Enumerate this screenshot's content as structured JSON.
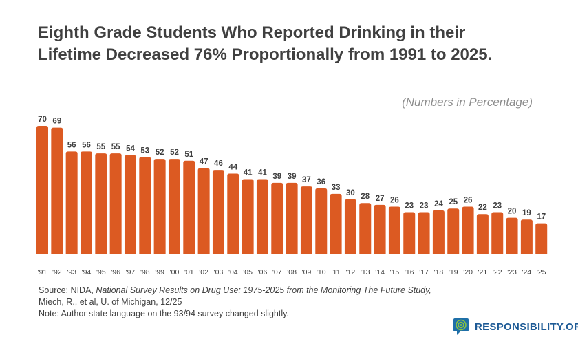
{
  "title_lines": [
    "Eighth Grade Students Who Reported Drinking in their",
    "Lifetime Decreased 76% Proportionally from 1991 to 2025."
  ],
  "subtitle": "(Numbers in Percentage)",
  "chart_data": {
    "type": "bar",
    "title": "Eighth Grade Students Who Reported Drinking in their Lifetime Decreased 76% Proportionally from 1991 to 2025.",
    "ylabel": "(Numbers in Percentage)",
    "categories": [
      "'91",
      "'92",
      "'93",
      "'94",
      "'95",
      "'96",
      "'97",
      "'98",
      "'99",
      "'00",
      "'01",
      "'02",
      "'03",
      "'04",
      "'05",
      "'06",
      "'07",
      "'08",
      "'09",
      "'10",
      "'11",
      "'12",
      "'13",
      "'14",
      "'15",
      "'16",
      "'17",
      "'18",
      "'19",
      "'20",
      "'21",
      "'22",
      "'23",
      "'24",
      "'25"
    ],
    "values": [
      70,
      69,
      56,
      56,
      55,
      55,
      54,
      53,
      52,
      52,
      51,
      47,
      46,
      44,
      41,
      41,
      39,
      39,
      37,
      36,
      33,
      30,
      28,
      27,
      26,
      23,
      23,
      24,
      25,
      26,
      22,
      23,
      20,
      19,
      17
    ],
    "ylim": [
      0,
      70
    ],
    "grid": false,
    "color": "#dc5a22"
  },
  "source": {
    "prefix": "Source: NIDA, ",
    "link": "National Survey Results on Drug Use: 1975-2025 from the Monitoring The Future Study,",
    "line2": "Miech, R., et al, U. of Michigan, 12/25",
    "note": "Note: Author state language on the 93/94 survey changed slightly."
  },
  "logo": {
    "text": "RESPONSIBILITY.ORG"
  }
}
